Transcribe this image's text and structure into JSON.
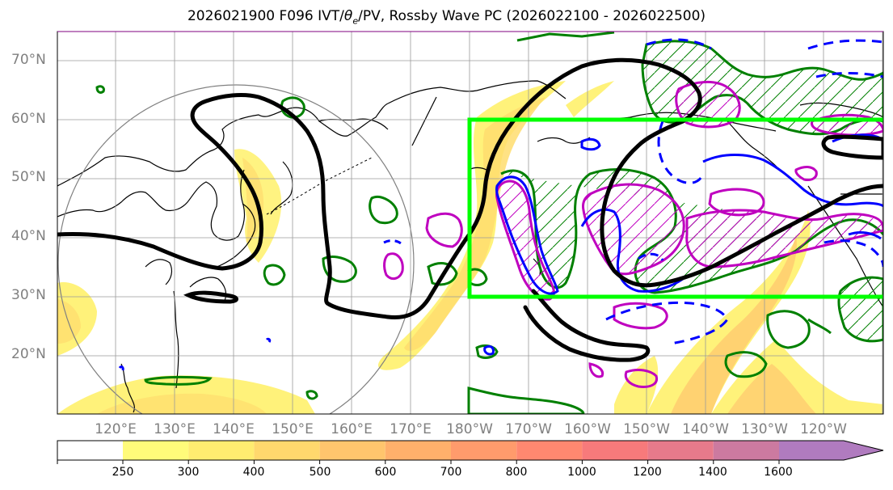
{
  "title_parts": {
    "prefix": "2026021900 F096 IVT/",
    "theta": "θ",
    "theta_sub": "e",
    "suffix": "/PV, Rossby Wave PC (2026022100 - 2026022500)"
  },
  "lat_labels": [
    "70°N",
    "60°N",
    "50°N",
    "40°N",
    "30°N",
    "20°N"
  ],
  "lon_labels": [
    "120°E",
    "130°E",
    "140°E",
    "150°E",
    "160°E",
    "170°E",
    "180°W",
    "170°W",
    "160°W",
    "150°W",
    "140°W",
    "130°W",
    "120°W"
  ],
  "colorbar": {
    "ticks": [
      "250",
      "300",
      "400",
      "500",
      "600",
      "700",
      "800",
      "1000",
      "1200",
      "1400",
      "1600"
    ],
    "colors": [
      "#fffb7a",
      "#ffec70",
      "#ffd86d",
      "#ffc56d",
      "#ffb06b",
      "#ff9b6c",
      "#ff8870",
      "#f77a7b",
      "#e77a8b",
      "#cc7aa0",
      "#b07bbf"
    ]
  },
  "overlays": {
    "pv_contour_color": "#000000",
    "theta_e_contour_color": "#0000ff",
    "ivt_outline_color": "#008000",
    "pv_anomaly_color": "#bf00bf",
    "region_box_color": "#00ff00",
    "ivt_fill_light": "#fff27a",
    "ivt_fill_dark": "#ffcc70"
  }
}
